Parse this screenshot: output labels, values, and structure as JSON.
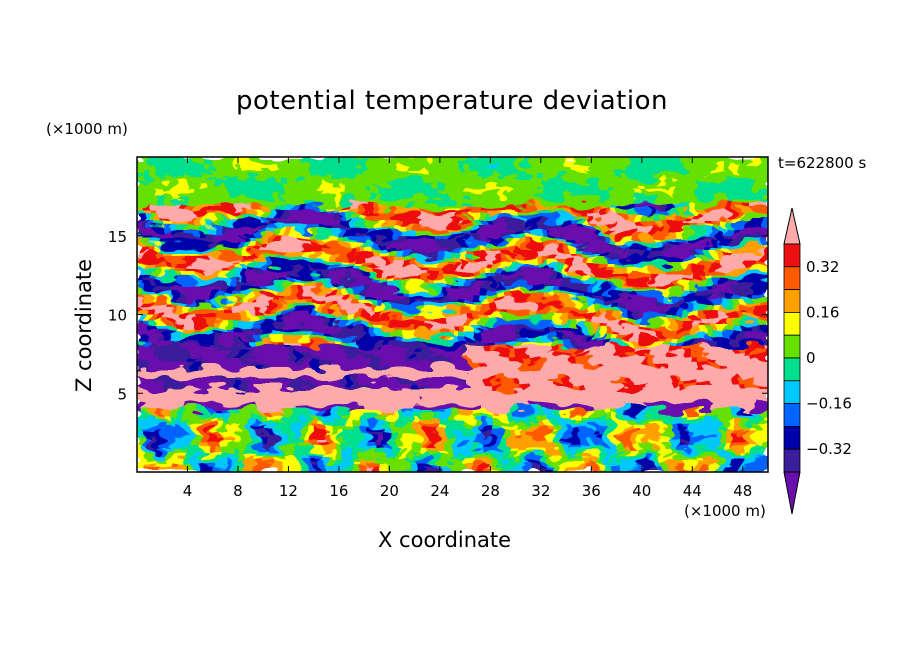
{
  "chart_data": {
    "type": "heatmap",
    "title": "potential temperature deviation",
    "xlabel": "X coordinate",
    "ylabel": "Z coordinate",
    "x_unit": "(×1000 m)",
    "z_unit": "(×1000 m)",
    "time_label": "t=622800 s",
    "xlim": [
      0,
      50
    ],
    "ylim": [
      0,
      20
    ],
    "x_ticks": [
      4,
      8,
      12,
      16,
      20,
      24,
      28,
      32,
      36,
      40,
      44,
      48
    ],
    "y_ticks": [
      5,
      10,
      15
    ],
    "colorbar": {
      "levels": [
        -0.4,
        -0.32,
        -0.24,
        -0.16,
        -0.08,
        0,
        0.08,
        0.16,
        0.24,
        0.32,
        0.4
      ],
      "colors": [
        "#6a0dad",
        "#3a1f9a",
        "#0000aa",
        "#0064ff",
        "#00c8ff",
        "#00e08c",
        "#66e000",
        "#ffff00",
        "#ffa000",
        "#ff5a00",
        "#ee1010",
        "#ffaaaa"
      ],
      "tick_labels": [
        "0.32",
        "0.16",
        "0",
        "−0.16",
        "−0.32"
      ],
      "tick_values": [
        0.32,
        0.16,
        0,
        -0.16,
        -0.32
      ],
      "extend": "both"
    },
    "layers": [
      {
        "z_range": [
          0,
          4
        ],
        "dominant": "mixed convective cells (cyan/green/orange)"
      },
      {
        "z_range": [
          4,
          5
        ],
        "dominant": "strong inversion band (pink over purple)"
      },
      {
        "z_range": [
          5,
          8
        ],
        "dominant": "negative anomaly (purple) west, positive (pink) east"
      },
      {
        "z_range": [
          8,
          17
        ],
        "dominant": "alternating wavy bands"
      },
      {
        "z_range": [
          17,
          20
        ],
        "dominant": "near zero (green/yellow)"
      }
    ]
  }
}
